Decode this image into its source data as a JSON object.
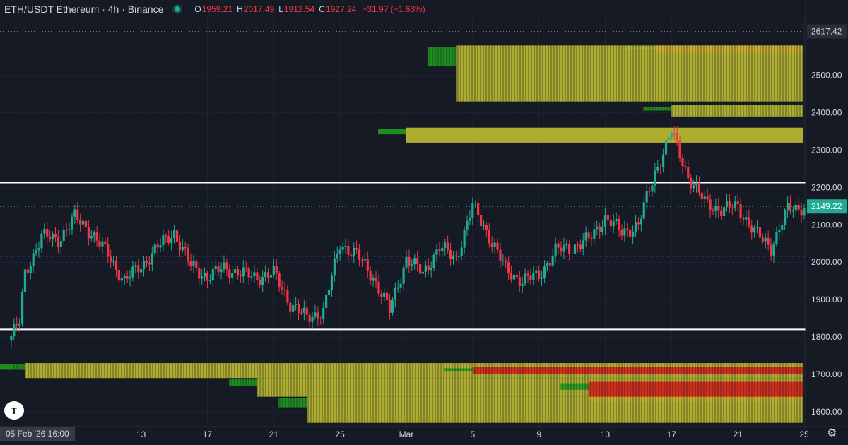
{
  "header": {
    "symbol_title": "ETH/USDT Ethereum · 4h · Binance",
    "status_color": "#22ab94",
    "open_label": "O",
    "open_value": "1959.21",
    "high_label": "H",
    "high_value": "2017.49",
    "low_label": "L",
    "low_value": "1912.54",
    "close_label": "C",
    "close_value": "1927.24",
    "change": "−31.97 (−1.63%)"
  },
  "footer": {
    "cursor_date": "05 Feb '26   16:00",
    "logo_text": "T",
    "settings_icon": "gear-icon"
  },
  "colors": {
    "up": "#22ab94",
    "down": "#f23645",
    "background": "#161a25",
    "heat_low": "#1f9a1f",
    "heat_mid": "#c8c832",
    "heat_high": "#d81818",
    "level_line": "#ffffff",
    "mid_line": "#2962ff"
  },
  "chart_data": {
    "type": "candlestick",
    "title": "ETH/USDT Ethereum · 4h · Binance",
    "interval": "4h",
    "ylim": [
      1560,
      2660
    ],
    "y_ticks": [
      "1600.00",
      "1700.00",
      "1800.00",
      "1900.00",
      "2000.00",
      "2100.00",
      "2200.00",
      "2300.00",
      "2400.00",
      "2500.00"
    ],
    "x_ticks": [
      {
        "x": "2026-02-13",
        "label": "13"
      },
      {
        "x": "2026-02-17",
        "label": "17"
      },
      {
        "x": "2026-02-21",
        "label": "21"
      },
      {
        "x": "2026-02-25",
        "label": "25"
      },
      {
        "x": "2026-03-01",
        "label": "Mar"
      },
      {
        "x": "2026-03-05",
        "label": "5"
      },
      {
        "x": "2026-03-09",
        "label": "9"
      },
      {
        "x": "2026-03-13",
        "label": "13"
      },
      {
        "x": "2026-03-17",
        "label": "17"
      },
      {
        "x": "2026-03-21",
        "label": "21"
      },
      {
        "x": "2026-03-25",
        "label": "25"
      }
    ],
    "x_range": [
      "2026-02-05",
      "2026-03-25"
    ],
    "last_price": "2149.22",
    "top_label": "2617.42",
    "horizontal_levels": [
      {
        "price": 2213,
        "style": "solid"
      },
      {
        "price": 1820,
        "style": "solid"
      },
      {
        "price": 2016,
        "style": "dashed"
      }
    ],
    "price_path": [
      [
        "2026-02-05",
        1790
      ],
      [
        "2026-02-05T16:00",
        1840
      ],
      [
        "2026-02-06",
        1970
      ],
      [
        "2026-02-07",
        2070
      ],
      [
        "2026-02-08",
        2060
      ],
      [
        "2026-02-09",
        2120
      ],
      [
        "2026-02-10",
        2080
      ],
      [
        "2026-02-11",
        2020
      ],
      [
        "2026-02-12",
        1950
      ],
      [
        "2026-02-13",
        1990
      ],
      [
        "2026-02-14",
        2040
      ],
      [
        "2026-02-15",
        2080
      ],
      [
        "2026-02-16",
        1990
      ],
      [
        "2026-02-17",
        1960
      ],
      [
        "2026-02-18",
        1985
      ],
      [
        "2026-02-19",
        1970
      ],
      [
        "2026-02-20",
        1960
      ],
      [
        "2026-02-21",
        1970
      ],
      [
        "2026-02-22",
        1890
      ],
      [
        "2026-02-23",
        1850
      ],
      [
        "2026-02-24",
        1870
      ],
      [
        "2026-02-25",
        2050
      ],
      [
        "2026-02-26",
        2020
      ],
      [
        "2026-02-27",
        1960
      ],
      [
        "2026-02-28",
        1870
      ],
      [
        "2026-03-01",
        2010
      ],
      [
        "2026-03-02",
        1970
      ],
      [
        "2026-03-03",
        2040
      ],
      [
        "2026-03-04",
        2010
      ],
      [
        "2026-03-05",
        2150
      ],
      [
        "2026-03-06",
        2070
      ],
      [
        "2026-03-07",
        1980
      ],
      [
        "2026-03-08",
        1950
      ],
      [
        "2026-03-09",
        1965
      ],
      [
        "2026-03-10",
        2030
      ],
      [
        "2026-03-11",
        2040
      ],
      [
        "2026-03-12",
        2060
      ],
      [
        "2026-03-13",
        2120
      ],
      [
        "2026-03-14",
        2080
      ],
      [
        "2026-03-15",
        2100
      ],
      [
        "2026-03-16",
        2240
      ],
      [
        "2026-03-17",
        2350
      ],
      [
        "2026-03-18",
        2230
      ],
      [
        "2026-03-19",
        2160
      ],
      [
        "2026-03-20",
        2140
      ],
      [
        "2026-03-21",
        2150
      ],
      [
        "2026-03-22",
        2080
      ],
      [
        "2026-03-23",
        2040
      ],
      [
        "2026-03-24",
        2140
      ],
      [
        "2026-03-25",
        2149
      ]
    ],
    "liquidation_bands": [
      {
        "from": 2560,
        "to": 2580,
        "start": "2026-03-16",
        "intensity": "high"
      },
      {
        "from": 2430,
        "to": 2580,
        "start": "2026-03-04",
        "intensity": "mid"
      },
      {
        "from": 2390,
        "to": 2420,
        "start": "2026-03-17",
        "intensity": "mid"
      },
      {
        "from": 2320,
        "to": 2360,
        "start": "2026-03-01",
        "intensity": "mid"
      },
      {
        "from": 1690,
        "to": 1730,
        "start": "2026-02-06",
        "intensity": "mid"
      },
      {
        "from": 1700,
        "to": 1720,
        "start": "2026-03-05",
        "intensity": "high"
      },
      {
        "from": 1640,
        "to": 1690,
        "start": "2026-02-20",
        "intensity": "mid"
      },
      {
        "from": 1630,
        "to": 1680,
        "start": "2026-03-12",
        "intensity": "high"
      },
      {
        "from": 1570,
        "to": 1640,
        "start": "2026-02-23",
        "intensity": "mid"
      }
    ]
  }
}
